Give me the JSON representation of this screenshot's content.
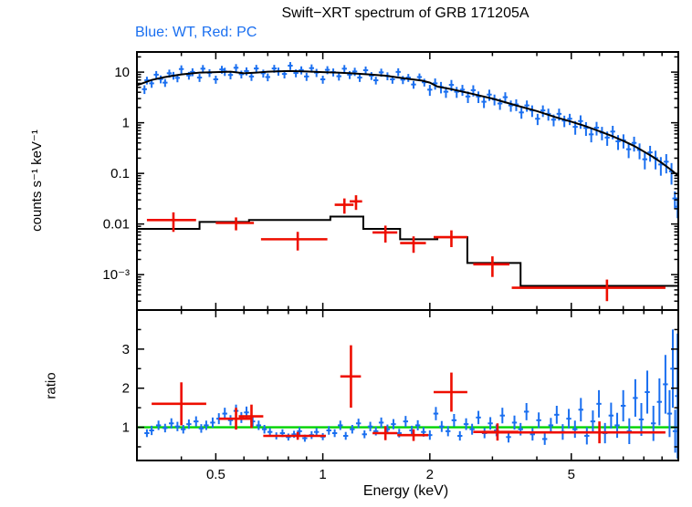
{
  "chart_data": {
    "type": "scatter",
    "title": "Swift−XRT spectrum of GRB 171205A",
    "legend": "Blue: WT, Red: PC",
    "xlabel": "Energy (keV)",
    "scale": {
      "x": "log",
      "y_top": "log",
      "y_bottom": "linear"
    },
    "x_range": [
      0.3,
      10
    ],
    "x_ticks_labeled": [
      [
        0.5,
        "0.5"
      ],
      [
        1,
        "1"
      ],
      [
        2,
        "2"
      ],
      [
        5,
        "5"
      ]
    ],
    "colors": {
      "wt": "#1a6ff0",
      "pc": "#ee0e00",
      "model": "#000000",
      "reference": "#00d400"
    },
    "top_panel": {
      "ylabel": "counts s⁻¹ keV⁻¹",
      "y_range": [
        0.0002,
        25
      ],
      "y_ticks_labeled": [
        [
          10,
          "10"
        ],
        [
          1,
          "1"
        ],
        [
          0.1,
          "0.1"
        ],
        [
          0.01,
          "0.01"
        ],
        [
          0.001,
          "10⁻³"
        ]
      ],
      "wt_points": [
        [
          0.315,
          4.6,
          0.9
        ],
        [
          0.32,
          6.9,
          1.2
        ],
        [
          0.33,
          6.0,
          1.1
        ],
        [
          0.34,
          8.9,
          1.6
        ],
        [
          0.35,
          7.3,
          1.3
        ],
        [
          0.36,
          6.2,
          1.1
        ],
        [
          0.37,
          9.5,
          1.7
        ],
        [
          0.38,
          8.6,
          1.5
        ],
        [
          0.39,
          7.7,
          1.4
        ],
        [
          0.4,
          11.5,
          2.1
        ],
        [
          0.42,
          8.6,
          1.5
        ],
        [
          0.43,
          10.1,
          1.8
        ],
        [
          0.45,
          7.8,
          1.4
        ],
        [
          0.46,
          11.7,
          2.1
        ],
        [
          0.48,
          9.7,
          1.7
        ],
        [
          0.5,
          7.2,
          1.3
        ],
        [
          0.52,
          11.3,
          2.0
        ],
        [
          0.53,
          10.3,
          1.9
        ],
        [
          0.55,
          8.8,
          1.6
        ],
        [
          0.57,
          12.2,
          2.2
        ],
        [
          0.59,
          9.1,
          1.6
        ],
        [
          0.61,
          10.5,
          1.9
        ],
        [
          0.63,
          8.2,
          1.5
        ],
        [
          0.65,
          11.8,
          2.1
        ],
        [
          0.68,
          9.5,
          1.7
        ],
        [
          0.7,
          8.0,
          1.4
        ],
        [
          0.73,
          11.8,
          2.1
        ],
        [
          0.75,
          10.4,
          1.9
        ],
        [
          0.78,
          9.2,
          1.7
        ],
        [
          0.81,
          13.4,
          2.4
        ],
        [
          0.84,
          9.6,
          1.7
        ],
        [
          0.87,
          11.0,
          2.0
        ],
        [
          0.9,
          8.2,
          1.5
        ],
        [
          0.93,
          12.0,
          2.2
        ],
        [
          0.96,
          9.8,
          1.8
        ],
        [
          1.0,
          7.2,
          1.3
        ],
        [
          1.03,
          11.1,
          2.0
        ],
        [
          1.07,
          10.0,
          1.8
        ],
        [
          1.11,
          8.3,
          1.5
        ],
        [
          1.15,
          11.7,
          2.1
        ],
        [
          1.19,
          8.9,
          1.6
        ],
        [
          1.23,
          10.3,
          1.9
        ],
        [
          1.27,
          7.8,
          1.4
        ],
        [
          1.32,
          10.9,
          2.0
        ],
        [
          1.37,
          8.5,
          1.5
        ],
        [
          1.41,
          6.9,
          1.2
        ],
        [
          1.46,
          9.9,
          1.8
        ],
        [
          1.52,
          8.4,
          1.5
        ],
        [
          1.57,
          7.2,
          1.3
        ],
        [
          1.63,
          10.1,
          1.8
        ],
        [
          1.68,
          7.1,
          1.3
        ],
        [
          1.74,
          7.8,
          1.4
        ],
        [
          1.8,
          5.7,
          1.0
        ],
        [
          1.87,
          8.0,
          1.4
        ],
        [
          1.93,
          6.3,
          1.1
        ],
        [
          2.0,
          4.5,
          1.1
        ],
        [
          2.07,
          6.0,
          1.5
        ],
        [
          2.15,
          5.1,
          1.3
        ],
        [
          2.22,
          4.1,
          1.0
        ],
        [
          2.3,
          5.6,
          1.4
        ],
        [
          2.38,
          4.1,
          1.0
        ],
        [
          2.47,
          4.5,
          1.1
        ],
        [
          2.56,
          3.3,
          0.85
        ],
        [
          2.65,
          4.4,
          1.1
        ],
        [
          2.74,
          3.3,
          0.85
        ],
        [
          2.84,
          2.6,
          0.65
        ],
        [
          2.94,
          3.6,
          0.9
        ],
        [
          3.04,
          2.9,
          0.7
        ],
        [
          3.15,
          2.4,
          0.6
        ],
        [
          3.26,
          3.2,
          0.8
        ],
        [
          3.38,
          2.2,
          0.55
        ],
        [
          3.5,
          2.3,
          0.6
        ],
        [
          3.62,
          1.6,
          0.4
        ],
        [
          3.75,
          2.2,
          0.55
        ],
        [
          3.88,
          1.75,
          0.45
        ],
        [
          4.02,
          1.2,
          0.3
        ],
        [
          4.16,
          1.75,
          0.45
        ],
        [
          4.31,
          1.5,
          0.4
        ],
        [
          4.46,
          1.15,
          0.3
        ],
        [
          4.62,
          1.5,
          0.4
        ],
        [
          4.78,
          1.1,
          0.28
        ],
        [
          4.95,
          1.2,
          0.3
        ],
        [
          5.13,
          0.83,
          0.25
        ],
        [
          5.31,
          1.08,
          0.32
        ],
        [
          5.5,
          0.79,
          0.24
        ],
        [
          5.69,
          0.59,
          0.18
        ],
        [
          5.89,
          0.8,
          0.24
        ],
        [
          6.1,
          0.64,
          0.19
        ],
        [
          6.31,
          0.51,
          0.16
        ],
        [
          6.54,
          0.67,
          0.2
        ],
        [
          6.77,
          0.43,
          0.14
        ],
        [
          7.01,
          0.45,
          0.14
        ],
        [
          7.25,
          0.3,
          0.1
        ],
        [
          7.51,
          0.4,
          0.13
        ],
        [
          7.78,
          0.29,
          0.1
        ],
        [
          8.05,
          0.19,
          0.07
        ],
        [
          8.33,
          0.26,
          0.09
        ],
        [
          8.63,
          0.2,
          0.08
        ],
        [
          8.93,
          0.15,
          0.06
        ],
        [
          9.25,
          0.17,
          0.07
        ],
        [
          9.57,
          0.11,
          0.05
        ],
        [
          9.78,
          0.032,
          0.012
        ],
        [
          9.95,
          0.022,
          0.009
        ]
      ],
      "wt_model": [
        [
          0.3,
          5.5
        ],
        [
          0.33,
          7.0
        ],
        [
          0.36,
          8.0
        ],
        [
          0.4,
          9.0
        ],
        [
          0.45,
          9.8
        ],
        [
          0.5,
          10.0
        ],
        [
          0.55,
          10.2
        ],
        [
          0.6,
          9.5
        ],
        [
          0.65,
          9.8
        ],
        [
          0.7,
          10.2
        ],
        [
          0.8,
          10.5
        ],
        [
          0.9,
          10.3
        ],
        [
          1.0,
          10.0
        ],
        [
          1.1,
          9.8
        ],
        [
          1.2,
          9.5
        ],
        [
          1.35,
          9.0
        ],
        [
          1.5,
          8.5
        ],
        [
          1.7,
          7.5
        ],
        [
          1.9,
          6.8
        ],
        [
          2.0,
          6.2
        ],
        [
          2.1,
          5.2
        ],
        [
          2.3,
          4.6
        ],
        [
          2.6,
          3.8
        ],
        [
          3.0,
          3.0
        ],
        [
          3.5,
          2.2
        ],
        [
          4.0,
          1.7
        ],
        [
          4.5,
          1.3
        ],
        [
          5.0,
          1.05
        ],
        [
          5.5,
          0.85
        ],
        [
          6.0,
          0.68
        ],
        [
          6.5,
          0.55
        ],
        [
          7.0,
          0.44
        ],
        [
          7.5,
          0.35
        ],
        [
          8.0,
          0.27
        ],
        [
          8.5,
          0.21
        ],
        [
          9.0,
          0.16
        ],
        [
          9.5,
          0.12
        ],
        [
          10.0,
          0.09
        ]
      ],
      "pc_points": [
        [
          0.38,
          0.012,
          0.06,
          0.005
        ],
        [
          0.57,
          0.0105,
          0.07,
          0.003
        ],
        [
          0.85,
          0.005,
          0.18,
          0.002
        ],
        [
          1.15,
          0.024,
          0.07,
          0.008
        ],
        [
          1.24,
          0.028,
          0.05,
          0.009
        ],
        [
          1.5,
          0.0068,
          0.12,
          0.0025
        ],
        [
          1.8,
          0.0042,
          0.15,
          0.0015
        ],
        [
          2.3,
          0.0055,
          0.25,
          0.002
        ],
        [
          3.0,
          0.0016,
          0.35,
          0.0007
        ],
        [
          6.3,
          0.00055,
          2.9,
          0.00025
        ]
      ],
      "pc_model_steps": [
        [
          0.3,
          0.45,
          0.008
        ],
        [
          0.45,
          0.62,
          0.011
        ],
        [
          0.62,
          1.05,
          0.012
        ],
        [
          1.05,
          1.3,
          0.014
        ],
        [
          1.3,
          1.65,
          0.008
        ],
        [
          1.65,
          2.1,
          0.005
        ],
        [
          2.1,
          2.55,
          0.0055
        ],
        [
          2.55,
          3.6,
          0.0017
        ],
        [
          3.6,
          10.0,
          0.0006
        ]
      ]
    },
    "bottom_panel": {
      "ylabel": "ratio",
      "y_range": [
        0.15,
        4.0
      ],
      "y_ticks_labeled": [
        [
          1,
          "1"
        ],
        [
          2,
          "2"
        ],
        [
          3,
          "3"
        ]
      ],
      "y_ticks_minor": [
        0.5,
        1.5,
        2.5,
        3.5
      ],
      "reference_line": 1,
      "wt_points": [
        [
          0.32,
          0.85,
          0.1
        ],
        [
          0.33,
          0.92,
          0.12
        ],
        [
          0.345,
          1.05,
          0.12
        ],
        [
          0.36,
          0.98,
          0.11
        ],
        [
          0.375,
          1.1,
          0.13
        ],
        [
          0.39,
          1.02,
          0.12
        ],
        [
          0.405,
          0.95,
          0.11
        ],
        [
          0.42,
          1.08,
          0.12
        ],
        [
          0.44,
          1.15,
          0.13
        ],
        [
          0.455,
          0.97,
          0.11
        ],
        [
          0.47,
          1.05,
          0.12
        ],
        [
          0.49,
          1.12,
          0.13
        ],
        [
          0.51,
          1.22,
          0.14
        ],
        [
          0.53,
          1.35,
          0.15
        ],
        [
          0.55,
          1.18,
          0.13
        ],
        [
          0.57,
          1.42,
          0.16
        ],
        [
          0.59,
          1.25,
          0.14
        ],
        [
          0.61,
          1.38,
          0.15
        ],
        [
          0.635,
          1.15,
          0.13
        ],
        [
          0.66,
          1.05,
          0.12
        ],
        [
          0.685,
          0.95,
          0.11
        ],
        [
          0.71,
          0.88,
          0.1
        ],
        [
          0.74,
          0.78,
          0.09
        ],
        [
          0.77,
          0.85,
          0.1
        ],
        [
          0.8,
          0.75,
          0.09
        ],
        [
          0.83,
          0.82,
          0.09
        ],
        [
          0.86,
          0.9,
          0.1
        ],
        [
          0.89,
          0.72,
          0.09
        ],
        [
          0.93,
          0.8,
          0.1
        ],
        [
          0.96,
          0.88,
          0.1
        ],
        [
          1.0,
          0.76,
          0.09
        ],
        [
          1.04,
          0.92,
          0.11
        ],
        [
          1.08,
          0.85,
          0.1
        ],
        [
          1.12,
          1.05,
          0.12
        ],
        [
          1.16,
          0.78,
          0.1
        ],
        [
          1.21,
          0.95,
          0.11
        ],
        [
          1.26,
          1.1,
          0.12
        ],
        [
          1.31,
          0.82,
          0.1
        ],
        [
          1.36,
          1.02,
          0.12
        ],
        [
          1.41,
          0.9,
          0.11
        ],
        [
          1.46,
          1.12,
          0.13
        ],
        [
          1.52,
          0.95,
          0.12
        ],
        [
          1.58,
          1.08,
          0.13
        ],
        [
          1.64,
          0.85,
          0.11
        ],
        [
          1.71,
          1.15,
          0.14
        ],
        [
          1.78,
          0.92,
          0.12
        ],
        [
          1.85,
          1.05,
          0.13
        ],
        [
          1.92,
          0.88,
          0.12
        ],
        [
          2.0,
          0.8,
          0.12
        ],
        [
          2.08,
          1.35,
          0.17
        ],
        [
          2.16,
          1.02,
          0.14
        ],
        [
          2.25,
          0.9,
          0.13
        ],
        [
          2.34,
          1.18,
          0.16
        ],
        [
          2.43,
          0.78,
          0.12
        ],
        [
          2.53,
          1.08,
          0.15
        ],
        [
          2.63,
          0.95,
          0.14
        ],
        [
          2.74,
          1.25,
          0.17
        ],
        [
          2.85,
          0.85,
          0.13
        ],
        [
          2.96,
          1.1,
          0.16
        ],
        [
          3.08,
          0.92,
          0.15
        ],
        [
          3.2,
          1.3,
          0.2
        ],
        [
          3.33,
          0.75,
          0.14
        ],
        [
          3.46,
          1.12,
          0.18
        ],
        [
          3.6,
          0.95,
          0.16
        ],
        [
          3.74,
          1.4,
          0.22
        ],
        [
          3.89,
          0.82,
          0.16
        ],
        [
          4.05,
          1.18,
          0.2
        ],
        [
          4.21,
          0.7,
          0.15
        ],
        [
          4.38,
          1.05,
          0.19
        ],
        [
          4.55,
          1.32,
          0.23
        ],
        [
          4.73,
          0.88,
          0.2
        ],
        [
          4.92,
          1.22,
          0.25
        ],
        [
          5.12,
          0.95,
          0.22
        ],
        [
          5.32,
          1.45,
          0.3
        ],
        [
          5.53,
          0.78,
          0.22
        ],
        [
          5.75,
          1.15,
          0.28
        ],
        [
          5.98,
          1.6,
          0.35
        ],
        [
          6.22,
          0.85,
          0.26
        ],
        [
          6.47,
          1.3,
          0.33
        ],
        [
          6.73,
          1.05,
          0.32
        ],
        [
          7.0,
          1.55,
          0.4
        ],
        [
          7.28,
          0.9,
          0.33
        ],
        [
          7.57,
          1.75,
          0.48
        ],
        [
          7.87,
          1.2,
          0.42
        ],
        [
          8.18,
          1.9,
          0.55
        ],
        [
          8.51,
          1.1,
          0.45
        ],
        [
          8.85,
          1.65,
          0.6
        ],
        [
          9.2,
          2.1,
          0.75
        ],
        [
          9.45,
          1.35,
          0.6
        ],
        [
          9.65,
          2.5,
          1.0
        ],
        [
          9.8,
          0.9,
          0.55
        ],
        [
          9.95,
          1.8,
          1.6
        ]
      ],
      "pc_points": [
        [
          0.4,
          1.6,
          0.07,
          0.55
        ],
        [
          0.57,
          1.22,
          0.06,
          0.28
        ],
        [
          0.63,
          1.28,
          0.05,
          0.3
        ],
        [
          0.85,
          0.78,
          0.17,
          0.1
        ],
        [
          1.2,
          2.3,
          0.08,
          0.8
        ],
        [
          1.5,
          0.85,
          0.12,
          0.18
        ],
        [
          1.8,
          0.8,
          0.18,
          0.15
        ],
        [
          2.3,
          1.9,
          0.25,
          0.5
        ],
        [
          3.1,
          0.88,
          0.45,
          0.22
        ],
        [
          6.0,
          0.87,
          3.2,
          0.28
        ]
      ]
    }
  }
}
